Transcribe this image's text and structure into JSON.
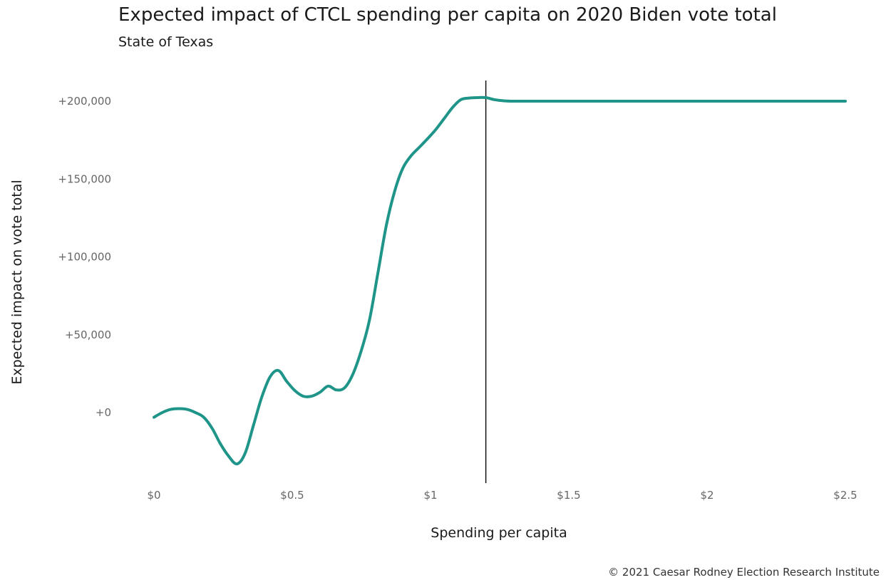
{
  "chart_data": {
    "type": "line",
    "title": "Expected impact of CTCL spending per capita on 2020 Biden vote total",
    "subtitle": "State of Texas",
    "xlabel": "Spending per capita",
    "ylabel": "Expected impact on vote total",
    "x_ticks": [
      {
        "value": 0,
        "label": "$0"
      },
      {
        "value": 0.5,
        "label": "$0.5"
      },
      {
        "value": 1,
        "label": "$1"
      },
      {
        "value": 1.5,
        "label": "$1.5"
      },
      {
        "value": 2,
        "label": "$2"
      },
      {
        "value": 2.5,
        "label": "$2.5"
      }
    ],
    "y_ticks": [
      {
        "value": 0,
        "label": "+0"
      },
      {
        "value": 50000,
        "label": "+50,000"
      },
      {
        "value": 100000,
        "label": "+100,000"
      },
      {
        "value": 150000,
        "label": "+150,000"
      },
      {
        "value": 200000,
        "label": "+200,000"
      }
    ],
    "xlim": [
      0,
      2.5
    ],
    "ylim": [
      -45000,
      215000
    ],
    "grid": false,
    "line_color": "#1f9488",
    "reference_line": {
      "x": 1.2,
      "color": "#111111"
    },
    "series": [
      {
        "x": [
          0,
          0.03,
          0.06,
          0.09,
          0.12,
          0.15,
          0.18,
          0.21,
          0.24,
          0.27,
          0.3,
          0.33,
          0.36,
          0.39,
          0.42,
          0.45,
          0.48,
          0.51,
          0.54,
          0.57,
          0.6,
          0.63,
          0.66,
          0.69,
          0.72,
          0.75,
          0.78,
          0.81,
          0.84,
          0.87,
          0.9,
          0.93,
          0.96,
          0.99,
          1.02,
          1.05,
          1.08,
          1.11,
          1.14,
          1.17,
          1.2,
          1.23,
          1.26,
          1.3,
          1.4,
          1.6,
          2.0,
          2.5
        ],
        "y": [
          -3000,
          0,
          2000,
          2500,
          2000,
          0,
          -3000,
          -10000,
          -20000,
          -28000,
          -33000,
          -26000,
          -8000,
          10000,
          23000,
          27000,
          20000,
          14000,
          10500,
          10500,
          13000,
          17000,
          14500,
          16000,
          25000,
          40000,
          60000,
          90000,
          120000,
          142000,
          157000,
          165000,
          170500,
          176000,
          182000,
          189000,
          196000,
          201000,
          202000,
          202300,
          202300,
          201000,
          200300,
          200000,
          200000,
          200000,
          200000,
          200000
        ]
      }
    ],
    "footer": "© 2021 Caesar Rodney Election Research Institute"
  }
}
